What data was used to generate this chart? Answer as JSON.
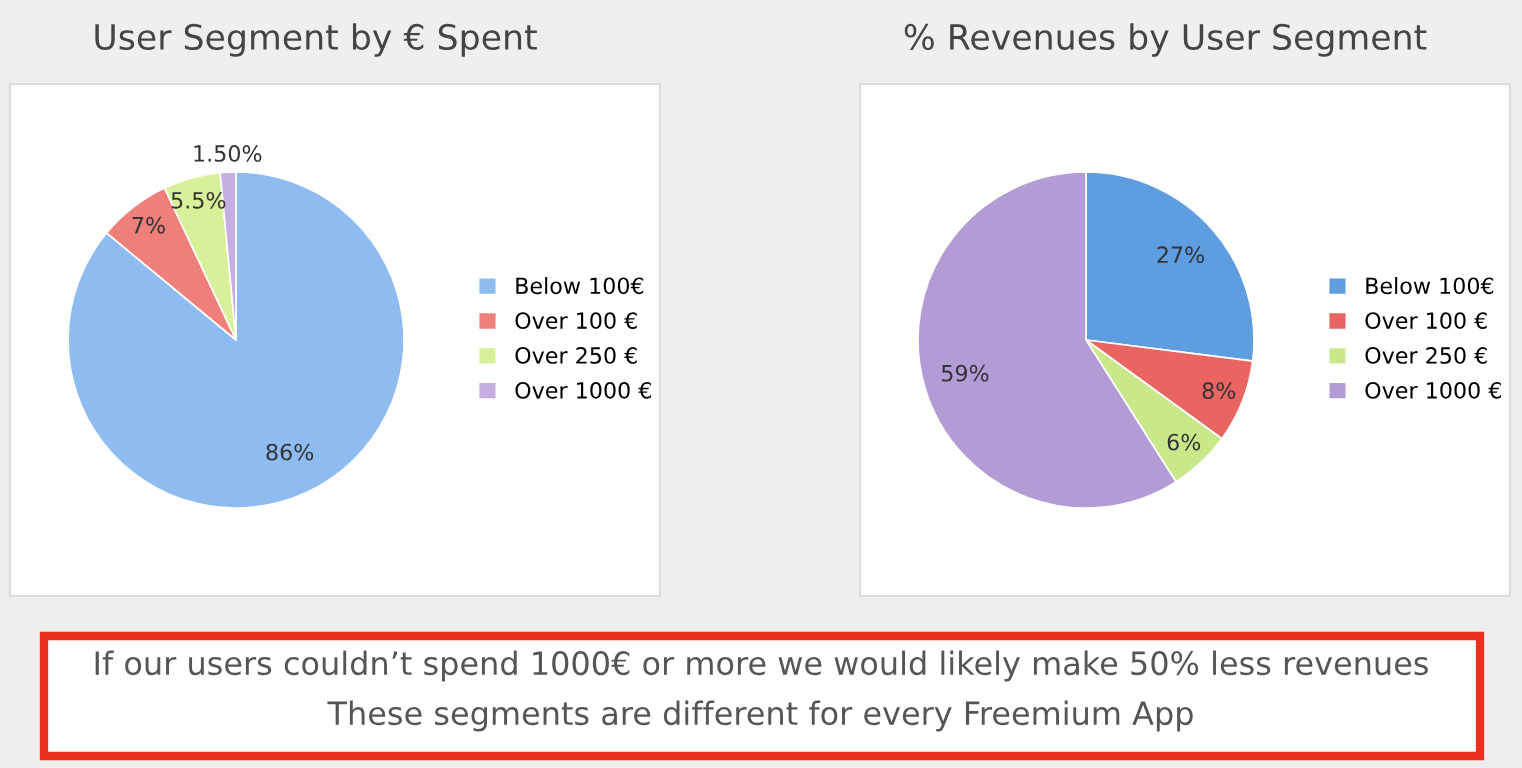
{
  "chart_data": [
    {
      "type": "pie",
      "title": "User Segment by € Spent",
      "categories": [
        "Below 100€",
        "Over 100 €",
        "Over 250 €",
        "Over 1000 €"
      ],
      "values": [
        86,
        7,
        5.5,
        1.5
      ],
      "value_labels": [
        "86%",
        "7%",
        "5.5%",
        "1.50%"
      ],
      "colors": [
        "#8fbcf0",
        "#ef7f7b",
        "#d9f09a",
        "#c6aee0"
      ],
      "legend": "right"
    },
    {
      "type": "pie",
      "title": "% Revenues by User Segment",
      "categories": [
        "Below 100€",
        "Over 100 €",
        "Over 250 €",
        "Over 1000 €"
      ],
      "values": [
        27,
        8,
        6,
        59
      ],
      "value_labels": [
        "27%",
        "8%",
        "6%",
        "59%"
      ],
      "colors": [
        "#5d9de0",
        "#ea6461",
        "#c9e88a",
        "#b39bd6"
      ],
      "legend": "right"
    },
    {
      "type": "other",
      "annotations": [
        "If our users couldn’t spend 1000€ or more we would likely make 50% less revenues",
        "These segments are different for every Freemium App"
      ]
    }
  ]
}
